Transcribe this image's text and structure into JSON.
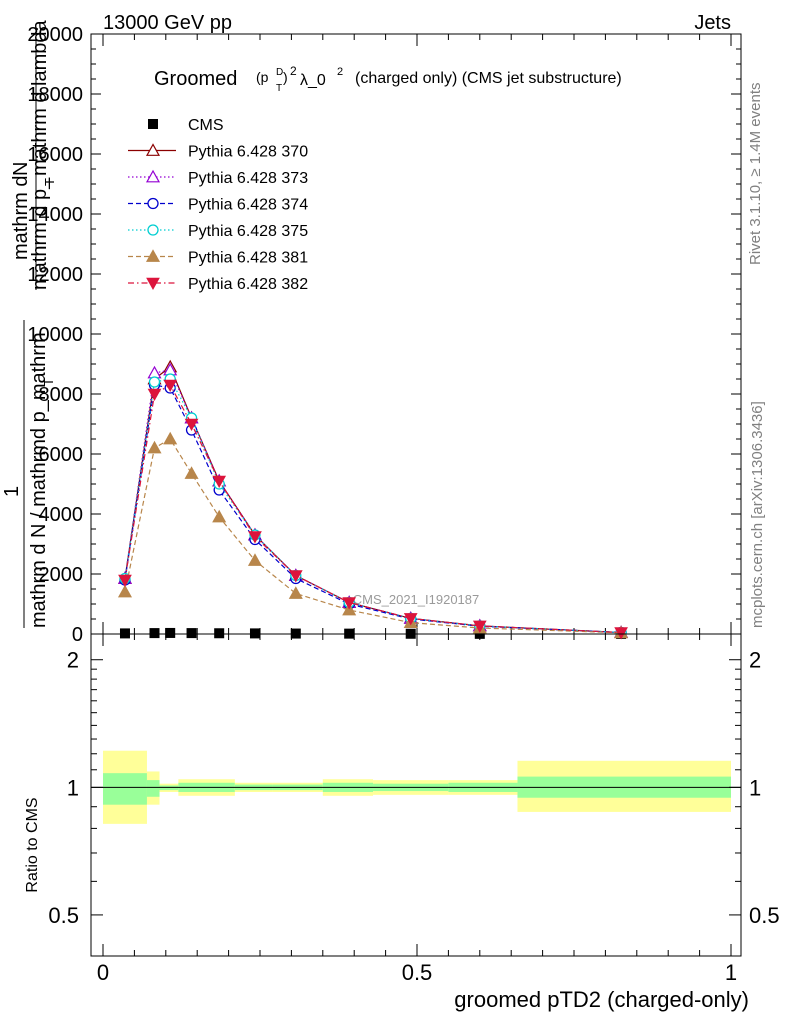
{
  "header": {
    "left": "13000 GeV pp",
    "right": "Jets"
  },
  "side_labels": {
    "rivet": "Rivet 3.1.10, ≥ 1.4M events",
    "mcplots": "mcplots.cern.ch [arXiv:1306.3436]"
  },
  "watermark": "CMS_2021_I1920187",
  "chart_data": [
    {
      "type": "line",
      "title": {
        "groomed": "Groomed",
        "formula_p": "(p",
        "formula_D": "D",
        "formula_T": "T",
        "formula_exp": ")",
        "formula_2": "2",
        "formula_lambda": "λ_0",
        "formula_lambda_2": "2",
        "suffix": "(charged only) (CMS jet substructure)"
      },
      "ylabel": {
        "top": "mathrm d",
        "top_N": "N",
        "line2": "mathrm d p_",
        "line2_T": "T",
        "line2_rest": "mathrm d lambda",
        "one": "1",
        "bottom": "mathrm d N / mathrmd p_mathrm",
        "bottom_T": "T"
      },
      "xlim": [
        0,
        1
      ],
      "ylim": [
        0,
        20000
      ],
      "yticks": [
        0,
        2000,
        4000,
        6000,
        8000,
        10000,
        12000,
        14000,
        16000,
        18000,
        20000
      ],
      "ytick_labels": [
        "0",
        "2000",
        "4000",
        "6000",
        "8000",
        "10000",
        "12000",
        "14000",
        "16000",
        "18000",
        "20000"
      ],
      "legend_position": "top-left",
      "series": [
        {
          "name": "CMS",
          "color": "#000000",
          "marker": "square",
          "line": "none",
          "x": [
            0.035,
            0.082,
            0.107,
            0.141,
            0.185,
            0.242,
            0.307,
            0.392,
            0.49,
            0.6,
            0.825
          ],
          "y": [
            20,
            30,
            35,
            30,
            25,
            20,
            15,
            12,
            8,
            5,
            2
          ]
        },
        {
          "name": "Pythia 6.428 370",
          "color": "#8b0000",
          "marker": "triangle-open",
          "line": "solid",
          "x": [
            0.035,
            0.082,
            0.107,
            0.141,
            0.185,
            0.242,
            0.307,
            0.392,
            0.49,
            0.6,
            0.825
          ],
          "y": [
            1850,
            8500,
            8900,
            7200,
            5100,
            3300,
            1950,
            1050,
            520,
            270,
            50
          ]
        },
        {
          "name": "Pythia 6.428 373",
          "color": "#9400d3",
          "marker": "triangle-open",
          "line": "dotted",
          "x": [
            0.035,
            0.082,
            0.107,
            0.141,
            0.185,
            0.242,
            0.307,
            0.392,
            0.49,
            0.6,
            0.825
          ],
          "y": [
            1850,
            8700,
            8800,
            7200,
            5100,
            3300,
            1950,
            1050,
            520,
            270,
            50
          ]
        },
        {
          "name": "Pythia 6.428 374",
          "color": "#0000cd",
          "marker": "circle-open",
          "line": "dashed",
          "x": [
            0.035,
            0.082,
            0.107,
            0.141,
            0.185,
            0.242,
            0.307,
            0.392,
            0.49,
            0.6,
            0.825
          ],
          "y": [
            1800,
            8300,
            8200,
            6800,
            4800,
            3150,
            1850,
            1000,
            500,
            260,
            50
          ]
        },
        {
          "name": "Pythia 6.428 375",
          "color": "#00ced1",
          "marker": "circle-open",
          "line": "dotted",
          "x": [
            0.035,
            0.082,
            0.107,
            0.141,
            0.185,
            0.242,
            0.307,
            0.392,
            0.49,
            0.6,
            0.825
          ],
          "y": [
            1850,
            8400,
            8500,
            7200,
            5000,
            3300,
            1950,
            1050,
            520,
            270,
            50
          ]
        },
        {
          "name": "Pythia 6.428 381",
          "color": "#b8864b",
          "marker": "triangle-filled",
          "line": "dashed",
          "x": [
            0.035,
            0.082,
            0.107,
            0.141,
            0.185,
            0.242,
            0.307,
            0.392,
            0.49,
            0.6,
            0.825
          ],
          "y": [
            1400,
            6200,
            6500,
            5350,
            3900,
            2450,
            1350,
            800,
            380,
            200,
            40
          ]
        },
        {
          "name": "Pythia 6.428 382",
          "color": "#dc143c",
          "marker": "triangle-down-filled",
          "line": "dashdot",
          "x": [
            0.035,
            0.082,
            0.107,
            0.141,
            0.185,
            0.242,
            0.307,
            0.392,
            0.49,
            0.6,
            0.825
          ],
          "y": [
            1800,
            8000,
            8300,
            7000,
            5100,
            3250,
            1950,
            1050,
            520,
            270,
            50
          ]
        }
      ]
    },
    {
      "type": "area",
      "ylabel": "Ratio to CMS",
      "xlabel": "groomed pTD2 (charged-only)",
      "xlim": [
        0,
        1
      ],
      "ylim": [
        0.4,
        2.3
      ],
      "ytick_labels": [
        "0.5",
        "1",
        "2"
      ],
      "xtick_labels": [
        "0",
        "0.5",
        "1"
      ],
      "reference_line": 1,
      "bins": [
        {
          "x0": 0.0,
          "x1": 0.07,
          "inner": [
            0.91,
            1.08
          ],
          "outer": [
            0.82,
            1.22
          ]
        },
        {
          "x0": 0.07,
          "x1": 0.09,
          "inner": [
            0.95,
            1.04
          ],
          "outer": [
            0.91,
            1.09
          ]
        },
        {
          "x0": 0.09,
          "x1": 0.12,
          "inner": [
            0.985,
            1.01
          ],
          "outer": [
            0.975,
            1.02
          ]
        },
        {
          "x0": 0.12,
          "x1": 0.21,
          "inner": [
            0.975,
            1.025
          ],
          "outer": [
            0.955,
            1.045
          ]
        },
        {
          "x0": 0.21,
          "x1": 0.27,
          "inner": [
            0.985,
            1.015
          ],
          "outer": [
            0.975,
            1.025
          ]
        },
        {
          "x0": 0.27,
          "x1": 0.35,
          "inner": [
            0.985,
            1.015
          ],
          "outer": [
            0.975,
            1.025
          ]
        },
        {
          "x0": 0.35,
          "x1": 0.43,
          "inner": [
            0.975,
            1.025
          ],
          "outer": [
            0.955,
            1.045
          ]
        },
        {
          "x0": 0.43,
          "x1": 0.55,
          "inner": [
            0.98,
            1.02
          ],
          "outer": [
            0.96,
            1.04
          ]
        },
        {
          "x0": 0.55,
          "x1": 0.66,
          "inner": [
            0.975,
            1.025
          ],
          "outer": [
            0.96,
            1.04
          ]
        },
        {
          "x0": 0.66,
          "x1": 1.0,
          "inner": [
            0.945,
            1.06
          ],
          "outer": [
            0.875,
            1.155
          ]
        }
      ],
      "band_colors": {
        "inner": "#99ff99",
        "outer": "#ffff99"
      }
    }
  ]
}
